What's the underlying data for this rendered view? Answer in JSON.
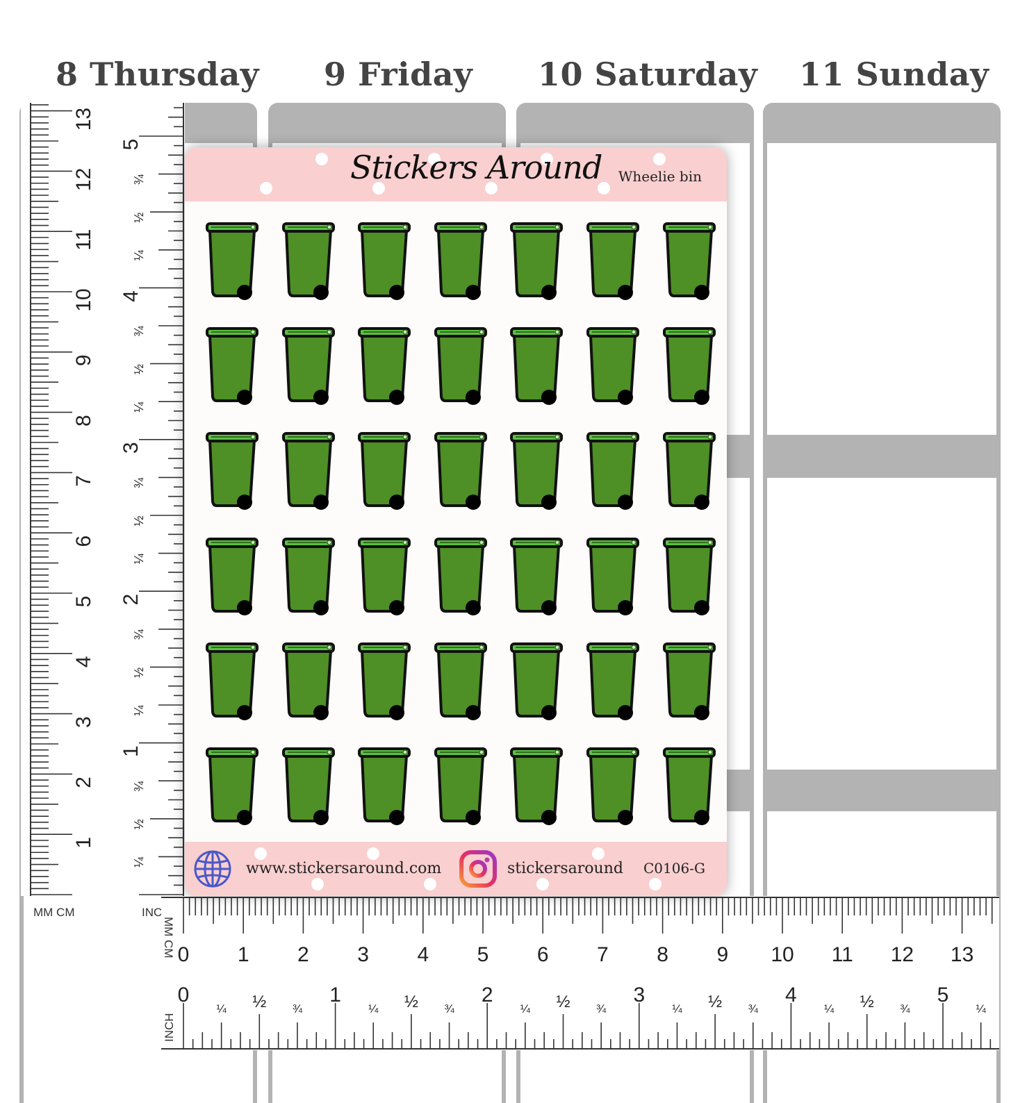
{
  "days": [
    {
      "label": "8 Thursday"
    },
    {
      "label": "9 Friday"
    },
    {
      "label": "10 Saturday"
    },
    {
      "label": "11 Sunday"
    }
  ],
  "ruler": {
    "mm_cm_label": "MM CM",
    "inch_label": "INCH",
    "cm_numbers": [
      "0",
      "1",
      "2",
      "3",
      "4",
      "5",
      "6",
      "7",
      "8",
      "9",
      "10",
      "11",
      "12",
      "13"
    ],
    "inch_numbers": [
      "0",
      "1",
      "2",
      "3",
      "4",
      "5"
    ],
    "quarter": "¼",
    "half": "½",
    "three_quarter": "¾"
  },
  "sheet": {
    "brand": "Stickers Around",
    "name": "Wheelie bin",
    "website": "www.stickersaround.com",
    "instagram": "stickersaround",
    "code": "C0106-G",
    "rows": 6,
    "cols": 7,
    "icons": {
      "sticker": "wheelie-bin-icon",
      "web": "globe-icon",
      "social": "instagram-icon"
    }
  },
  "colors": {
    "header_pink": "#f9cfd0",
    "bin_green": "#4e8f26",
    "lid_green": "#5bc043",
    "planner_gray": "#b3b3b3",
    "globe_blue": "#4a58c8"
  }
}
